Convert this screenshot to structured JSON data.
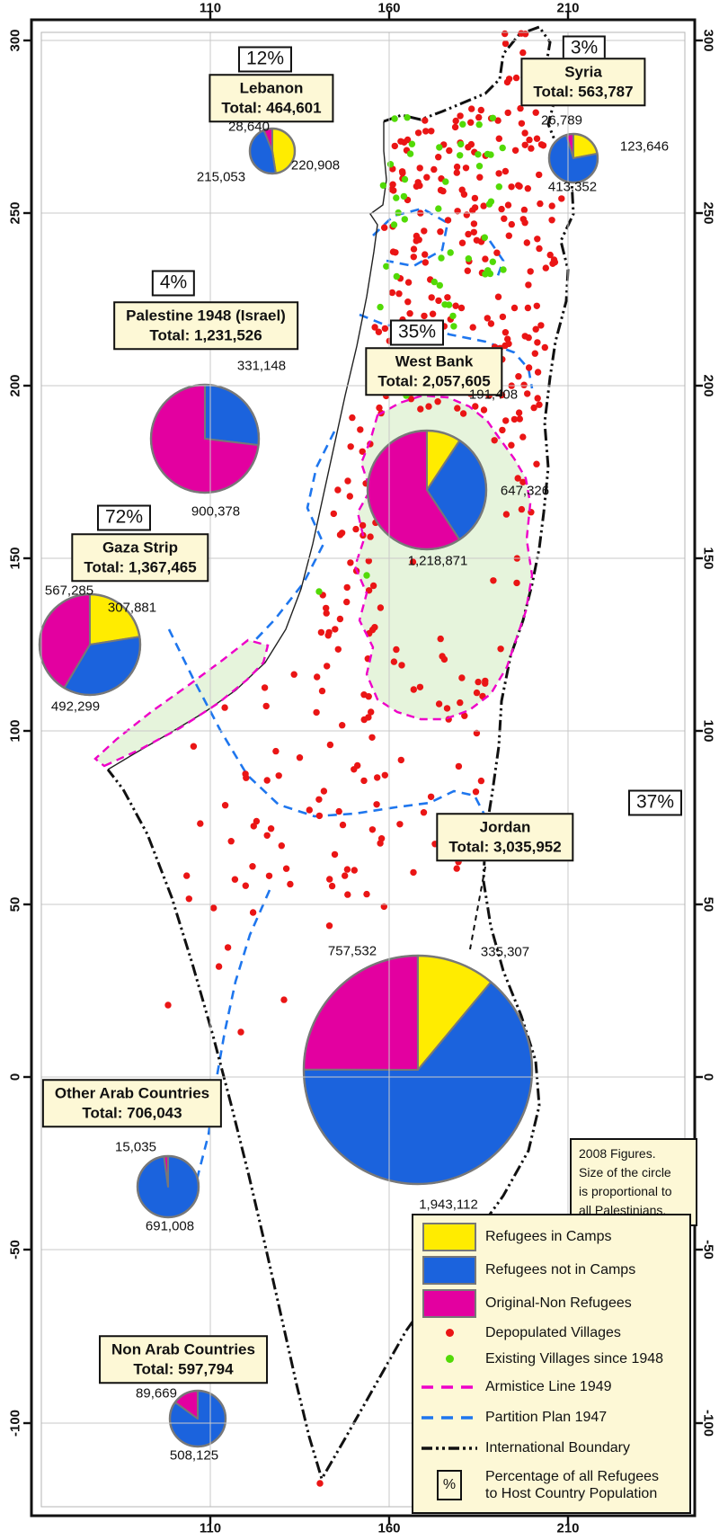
{
  "colors": {
    "camps": "#ffec00",
    "not_camps": "#1b63dd",
    "original": "#e300a0",
    "depopulated": "#ea1515",
    "existing": "#52da06",
    "armistice": "#ee00c8",
    "partition": "#1e76ee",
    "boundary": "#111111",
    "coast": "#222222",
    "region_fill": "#e6f4dc",
    "box_fill": "#fdf8d6",
    "grid": "#c9c9c9",
    "pie_stroke": "#787878"
  },
  "axis": {
    "x_ticks": [
      "110",
      "160",
      "210"
    ],
    "y_ticks": [
      "300",
      "250",
      "200",
      "150",
      "100",
      "50",
      "0",
      "-50",
      "-100"
    ]
  },
  "note_lines": [
    "2008 Figures.",
    "Size of the circle",
    "is proportional to",
    "all Palestinians."
  ],
  "legend": {
    "items": [
      {
        "swatch": "rect",
        "color_key": "camps",
        "label": "Refugees in Camps"
      },
      {
        "swatch": "rect",
        "color_key": "not_camps",
        "label": "Refugees not in Camps"
      },
      {
        "swatch": "rect",
        "color_key": "original",
        "label": "Original-Non Refugees"
      },
      {
        "swatch": "dot",
        "color_key": "depopulated",
        "label": "Depopulated Villages"
      },
      {
        "swatch": "dot",
        "color_key": "existing",
        "label": "Existing Villages since 1948"
      },
      {
        "swatch": "dash",
        "color_key": "armistice",
        "label": "Armistice Line 1949"
      },
      {
        "swatch": "dash",
        "color_key": "partition",
        "label": "Partition Plan 1947"
      },
      {
        "swatch": "dashdot",
        "color_key": "boundary",
        "label": "International Boundary"
      },
      {
        "swatch": "pct",
        "color_key": "boundary",
        "label": "Percentage of all Refugees",
        "label2": "to Host Country Population"
      }
    ]
  },
  "pies": [
    {
      "id": "lebanon",
      "pct": "12%",
      "name": "Lebanon",
      "total_label": "Total: 464,601",
      "slices": [
        {
          "key": "camps",
          "label": "220,908",
          "value": 220908
        },
        {
          "key": "not_camps",
          "label": "215,053",
          "value": 215053
        },
        {
          "key": "original",
          "label": "28,640",
          "value": 28640
        }
      ]
    },
    {
      "id": "syria",
      "pct": "3%",
      "name": "Syria",
      "total_label": "Total: 563,787",
      "slices": [
        {
          "key": "camps",
          "label": "123,646",
          "value": 123646
        },
        {
          "key": "not_camps",
          "label": "413,352",
          "value": 413352
        },
        {
          "key": "original",
          "label": "26,789",
          "value": 26789
        }
      ]
    },
    {
      "id": "palestine48",
      "pct": "4%",
      "name": "Palestine 1948 (Israel)",
      "total_label": "Total: 1,231,526",
      "slices": [
        {
          "key": "not_camps",
          "label": "331,148",
          "value": 331148
        },
        {
          "key": "original",
          "label": "900,378",
          "value": 900378
        }
      ]
    },
    {
      "id": "westbank",
      "pct": "35%",
      "name": "West Bank",
      "total_label": "Total: 2,057,605",
      "slices": [
        {
          "key": "camps",
          "label": "191,408",
          "value": 191408
        },
        {
          "key": "not_camps",
          "label": "647,326",
          "value": 647326
        },
        {
          "key": "original",
          "label": "1,218,871",
          "value": 1218871
        }
      ]
    },
    {
      "id": "gaza",
      "pct": "72%",
      "name": "Gaza Strip",
      "total_label": "Total: 1,367,465",
      "slices": [
        {
          "key": "camps",
          "label": "307,881",
          "value": 307881
        },
        {
          "key": "not_camps",
          "label": "492,299",
          "value": 492299
        },
        {
          "key": "original",
          "label": "567,285",
          "value": 567285
        }
      ]
    },
    {
      "id": "jordan",
      "pct": "37%",
      "name": "Jordan",
      "total_label": "Total: 3,035,952",
      "slices": [
        {
          "key": "camps",
          "label": "335,307",
          "value": 335307
        },
        {
          "key": "not_camps",
          "label": "1,943,112",
          "value": 1943112
        },
        {
          "key": "original",
          "label": "757,532",
          "value": 757532
        }
      ]
    },
    {
      "id": "otherarab",
      "pct": null,
      "name": "Other Arab Countries",
      "total_label": "Total: 706,043",
      "slices": [
        {
          "key": "not_camps",
          "label": "691,008",
          "value": 691008
        },
        {
          "key": "original",
          "label": "15,035",
          "value": 15035
        }
      ]
    },
    {
      "id": "nonarab",
      "pct": null,
      "name": "Non Arab Countries",
      "total_label": "Total: 597,794",
      "slices": [
        {
          "key": "not_camps",
          "label": "508,125",
          "value": 508125
        },
        {
          "key": "original",
          "label": "89,669",
          "value": 89669
        }
      ]
    }
  ],
  "chart_data": [
    {
      "type": "pie",
      "title": "Lebanon",
      "total": 464601,
      "percent_of_host": "12%",
      "labels": [
        "Refugees in Camps",
        "Refugees not in Camps",
        "Original-Non Refugees"
      ],
      "values": [
        220908,
        215053,
        28640
      ]
    },
    {
      "type": "pie",
      "title": "Syria",
      "total": 563787,
      "percent_of_host": "3%",
      "labels": [
        "Refugees in Camps",
        "Refugees not in Camps",
        "Original-Non Refugees"
      ],
      "values": [
        123646,
        413352,
        26789
      ]
    },
    {
      "type": "pie",
      "title": "Palestine 1948 (Israel)",
      "total": 1231526,
      "percent_of_host": "4%",
      "labels": [
        "Refugees not in Camps",
        "Original-Non Refugees"
      ],
      "values": [
        331148,
        900378
      ]
    },
    {
      "type": "pie",
      "title": "West Bank",
      "total": 2057605,
      "percent_of_host": "35%",
      "labels": [
        "Refugees in Camps",
        "Refugees not in Camps",
        "Original-Non Refugees"
      ],
      "values": [
        191408,
        647326,
        1218871
      ]
    },
    {
      "type": "pie",
      "title": "Gaza Strip",
      "total": 1367465,
      "percent_of_host": "72%",
      "labels": [
        "Refugees in Camps",
        "Refugees not in Camps",
        "Original-Non Refugees"
      ],
      "values": [
        307881,
        492299,
        567285
      ]
    },
    {
      "type": "pie",
      "title": "Jordan",
      "total": 3035952,
      "percent_of_host": "37%",
      "labels": [
        "Refugees in Camps",
        "Refugees not in Camps",
        "Original-Non Refugees"
      ],
      "values": [
        335307,
        1943112,
        757532
      ]
    },
    {
      "type": "pie",
      "title": "Other Arab Countries",
      "total": 706043,
      "labels": [
        "Refugees not in Camps",
        "Original-Non Refugees"
      ],
      "values": [
        691008,
        15035
      ]
    },
    {
      "type": "pie",
      "title": "Non Arab Countries",
      "total": 597794,
      "labels": [
        "Refugees not in Camps",
        "Original-Non Refugees"
      ],
      "values": [
        508125,
        89669
      ]
    }
  ]
}
